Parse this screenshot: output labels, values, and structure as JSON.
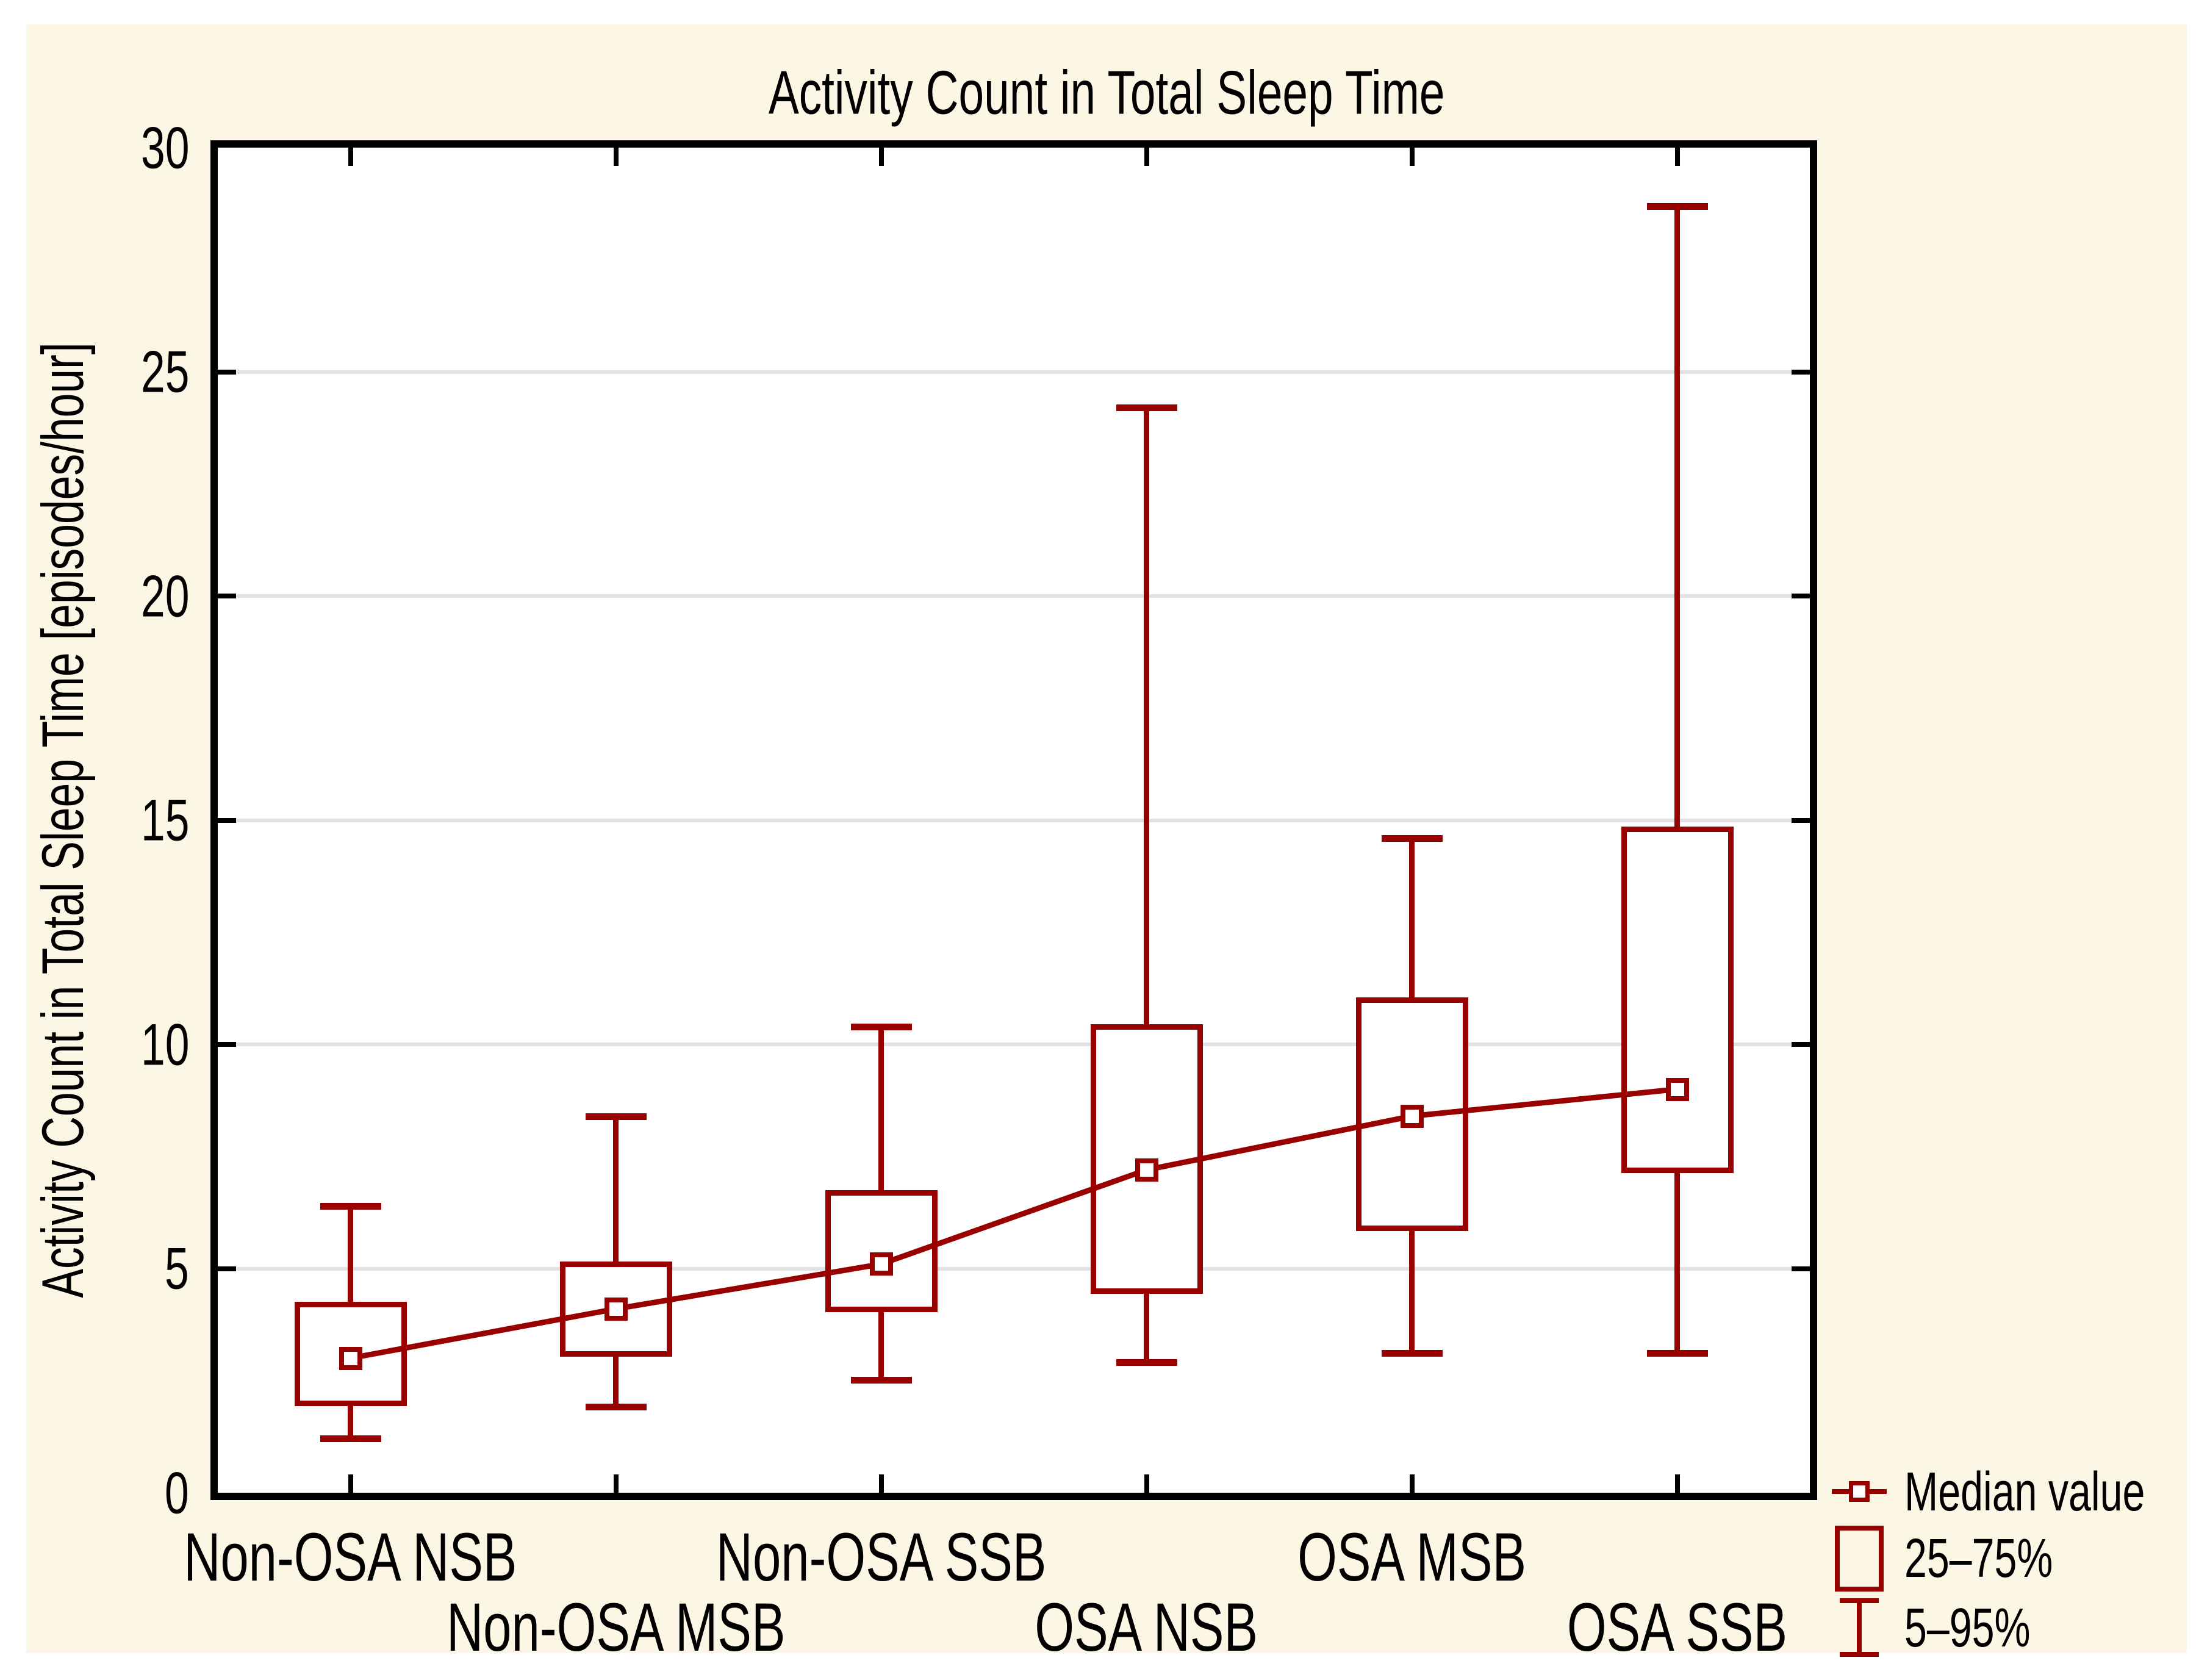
{
  "chart_data": {
    "type": "box",
    "title": "Activity Count in Total Sleep Time",
    "xlabel": "",
    "ylabel": "Activity Count in Total Sleep Time [episodes/hour]",
    "ylim": [
      0,
      30
    ],
    "ytick_step": 5,
    "yticks": [
      0,
      5,
      10,
      15,
      20,
      25,
      30
    ],
    "grid": true,
    "legend_position": "bottom-right",
    "categories": [
      "Non-OSA NSB",
      "Non-OSA MSB",
      "Non-OSA SSB",
      "OSA NSB",
      "OSA MSB",
      "OSA SSB"
    ],
    "boxes": [
      {
        "category": "Non-OSA NSB",
        "p5": 1.2,
        "q1": 2.0,
        "median": 3.0,
        "q3": 4.2,
        "p95": 6.4
      },
      {
        "category": "Non-OSA MSB",
        "p5": 1.9,
        "q1": 3.1,
        "median": 4.1,
        "q3": 5.1,
        "p95": 8.4
      },
      {
        "category": "Non-OSA SSB",
        "p5": 2.5,
        "q1": 4.1,
        "median": 5.1,
        "q3": 6.7,
        "p95": 10.4
      },
      {
        "category": "OSA NSB",
        "p5": 2.9,
        "q1": 4.5,
        "median": 7.2,
        "q3": 10.4,
        "p95": 24.2
      },
      {
        "category": "OSA MSB",
        "p5": 3.1,
        "q1": 5.9,
        "median": 8.4,
        "q3": 11.0,
        "p95": 14.6
      },
      {
        "category": "OSA SSB",
        "p5": 3.1,
        "q1": 7.2,
        "median": 9.0,
        "q3": 14.8,
        "p95": 28.7
      }
    ],
    "median_line": [
      3.0,
      4.1,
      5.1,
      7.2,
      8.4,
      9.0
    ]
  },
  "legend": {
    "items": [
      {
        "label": "Median value",
        "symbol": "median-marker"
      },
      {
        "label": "25–75%",
        "symbol": "box"
      },
      {
        "label": "5–95%",
        "symbol": "whisker"
      }
    ]
  },
  "colors": {
    "series": "#990000",
    "canvas_background": "#FCF6E4",
    "plot_background": "#FFFFFF",
    "grid": "#E2E2E2",
    "axis": "#000000",
    "text": "#000000"
  }
}
